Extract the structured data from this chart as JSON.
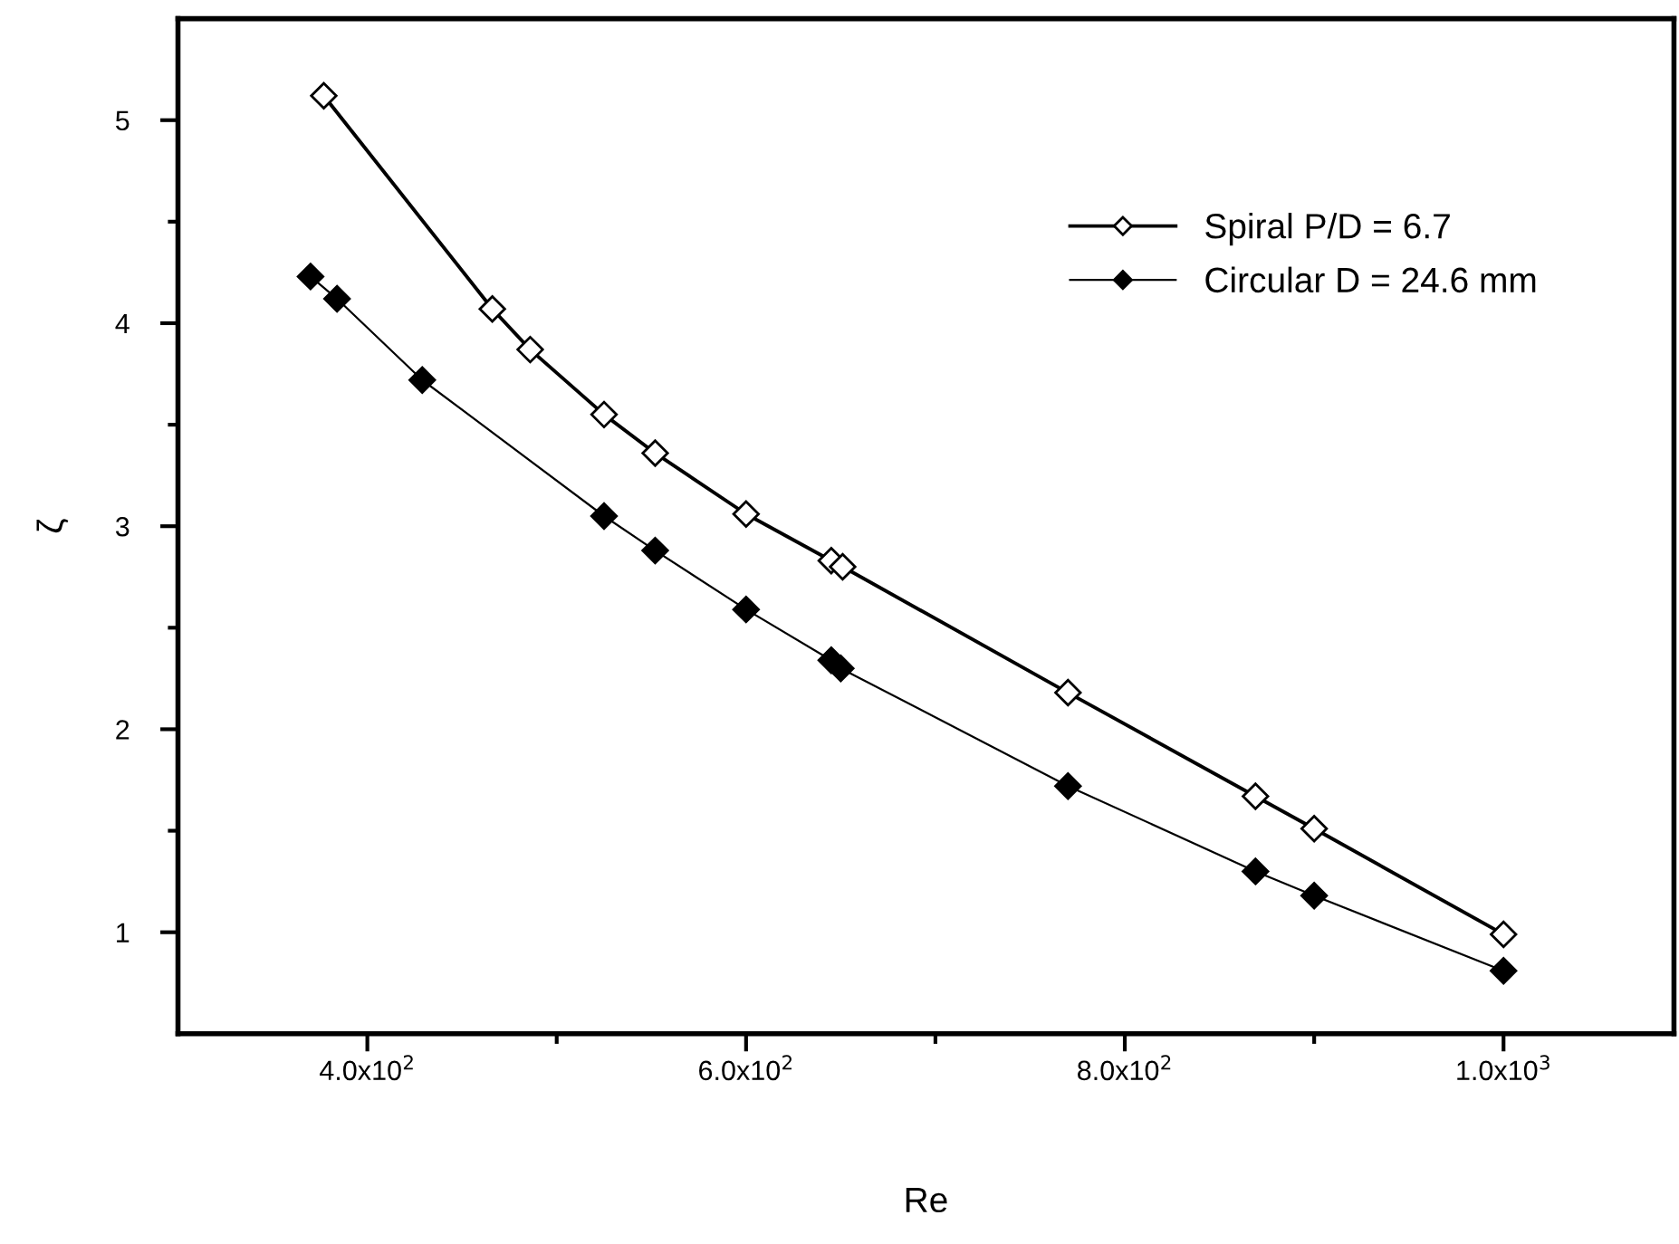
{
  "chart_data": {
    "type": "line",
    "xlabel": "Re",
    "ylabel": "ζ",
    "xlim": [
      300,
      1090
    ],
    "ylim": [
      0.5,
      5.5
    ],
    "xticks": [
      {
        "value": 400,
        "label": "4.0x10$^{2}$"
      },
      {
        "value": 500,
        "label": null
      },
      {
        "value": 600,
        "label": "6.0x10$^{2}$"
      },
      {
        "value": 700,
        "label": null
      },
      {
        "value": 800,
        "label": "8.0x10$^{2}$"
      },
      {
        "value": 900,
        "label": null
      },
      {
        "value": 1000,
        "label": "1.0x10$^{3}$"
      }
    ],
    "yticks": [
      {
        "value": 1,
        "label": "1"
      },
      {
        "value": 1.5,
        "label": null
      },
      {
        "value": 2,
        "label": "2"
      },
      {
        "value": 2.5,
        "label": null
      },
      {
        "value": 3,
        "label": "3"
      },
      {
        "value": 3.5,
        "label": null
      },
      {
        "value": 4,
        "label": "4"
      },
      {
        "value": 4.5,
        "label": null
      },
      {
        "value": 5,
        "label": "5"
      }
    ],
    "marker": "diamond",
    "grid": false,
    "legend": "top right",
    "series": [
      {
        "name": "Spiral P/D = 6.7",
        "color": "#000000",
        "x": [
          377,
          466,
          486,
          525,
          552,
          600,
          645,
          651,
          770,
          869,
          900,
          1000
        ],
        "values": [
          5.12,
          4.07,
          3.87,
          3.55,
          3.36,
          3.06,
          2.83,
          2.8,
          2.18,
          1.67,
          1.51,
          0.99
        ]
      },
      {
        "name": "Circular D = 24.6 mm",
        "color": "#000000",
        "x": [
          370,
          384,
          429,
          525,
          552,
          600,
          645,
          650,
          770,
          869,
          900,
          1000
        ],
        "values": [
          4.23,
          4.12,
          3.72,
          3.05,
          2.88,
          2.59,
          2.34,
          2.3,
          1.72,
          1.3,
          1.18,
          0.81
        ]
      }
    ]
  }
}
